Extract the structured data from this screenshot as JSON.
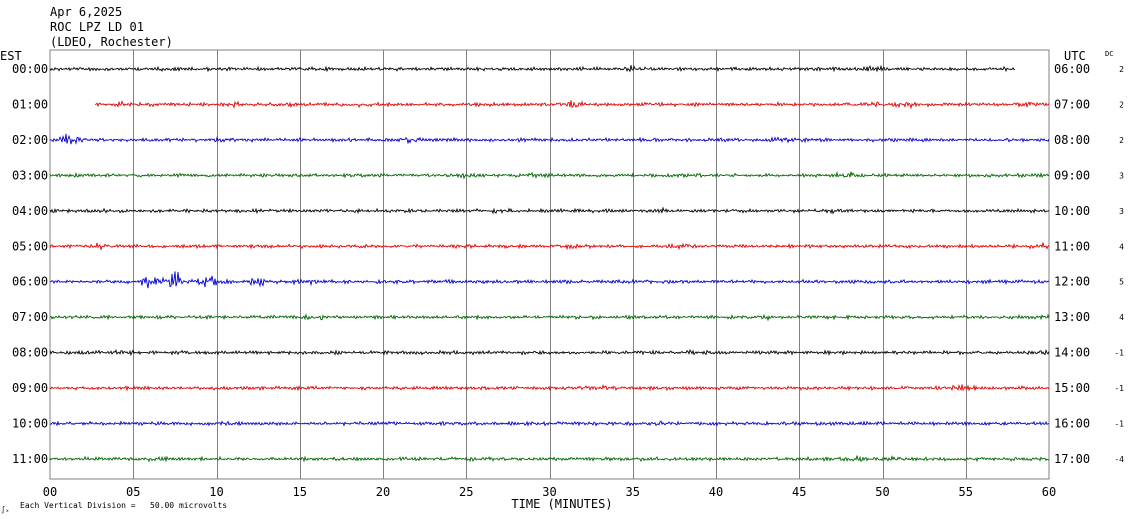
{
  "header": {
    "date": "Apr 6,2025",
    "station": "ROC LPZ LD 01",
    "network": "(LDEO, Rochester)"
  },
  "left_axis_label": "EST",
  "right_axis_label": "UTC",
  "dc_label": "DC",
  "footer": {
    "corner_mark": "∫ₓ",
    "scale_note": "Each Vertical Division =   50.00 microvolts"
  },
  "colors": {
    "black": "#000000",
    "red": "#e00000",
    "blue": "#0000cc",
    "green": "#006400",
    "grid": "#808080"
  },
  "chart_data": {
    "type": "line",
    "title": "Apr 6,2025 ROC LPZ LD 01 (LDEO, Rochester)",
    "xlabel": "TIME (MINUTES)",
    "xlim": [
      0,
      60
    ],
    "xticks": [
      "00",
      "05",
      "10",
      "15",
      "20",
      "25",
      "30",
      "35",
      "40",
      "45",
      "50",
      "55",
      "60"
    ],
    "grid": true,
    "rows": [
      {
        "est": "00:00",
        "utc": "06:00",
        "dc": "2",
        "color": "black",
        "trace_start_min": 0,
        "trace_end_min": 58,
        "events": [
          {
            "min": 35,
            "amp": 1.5
          },
          {
            "min": 49.5,
            "amp": 1.5
          },
          {
            "min": 57,
            "amp": 1.3
          }
        ]
      },
      {
        "est": "01:00",
        "utc": "07:00",
        "dc": "2",
        "color": "red",
        "trace_start_min": 2.7,
        "trace_end_min": 60,
        "events": [
          {
            "min": 4.5,
            "amp": 1.4
          },
          {
            "min": 11,
            "amp": 1.4
          },
          {
            "min": 14,
            "amp": 1.3
          },
          {
            "min": 19,
            "amp": 1.5
          },
          {
            "min": 31.5,
            "amp": 2.2
          },
          {
            "min": 49.5,
            "amp": 1.5
          },
          {
            "min": 51.5,
            "amp": 1.7
          },
          {
            "min": 58.5,
            "amp": 1.5
          }
        ]
      },
      {
        "est": "02:00",
        "utc": "08:00",
        "dc": "2",
        "color": "blue",
        "trace_start_min": 0,
        "trace_end_min": 60,
        "events": [
          {
            "min": 1.2,
            "amp": 2.4
          },
          {
            "min": 10.5,
            "amp": 1.4
          },
          {
            "min": 21.5,
            "amp": 2.0
          },
          {
            "min": 44,
            "amp": 1.3
          }
        ]
      },
      {
        "est": "03:00",
        "utc": "09:00",
        "dc": "3",
        "color": "green",
        "trace_start_min": 0,
        "trace_end_min": 60,
        "events": [
          {
            "min": 25,
            "amp": 1.4
          },
          {
            "min": 29,
            "amp": 1.5
          },
          {
            "min": 48,
            "amp": 2.0
          }
        ]
      },
      {
        "est": "04:00",
        "utc": "10:00",
        "dc": "3",
        "color": "black",
        "trace_start_min": 0,
        "trace_end_min": 60,
        "events": [
          {
            "min": 27,
            "amp": 1.5
          },
          {
            "min": 36.5,
            "amp": 1.4
          },
          {
            "min": 47,
            "amp": 1.3
          }
        ]
      },
      {
        "est": "05:00",
        "utc": "11:00",
        "dc": "4",
        "color": "red",
        "trace_start_min": 0,
        "trace_end_min": 60,
        "events": [
          {
            "min": 3,
            "amp": 1.5
          },
          {
            "min": 19,
            "amp": 1.3
          },
          {
            "min": 31.5,
            "amp": 1.5
          },
          {
            "min": 38,
            "amp": 1.6
          },
          {
            "min": 59.5,
            "amp": 1.6
          }
        ]
      },
      {
        "est": "06:00",
        "utc": "12:00",
        "dc": "5",
        "color": "blue",
        "trace_start_min": 0,
        "trace_end_min": 60,
        "events": [
          {
            "min": 6,
            "amp": 2.5
          },
          {
            "min": 7.5,
            "amp": 3.6
          },
          {
            "min": 9.5,
            "amp": 2.8
          },
          {
            "min": 12.5,
            "amp": 2.2
          },
          {
            "min": 15.5,
            "amp": 2.0
          }
        ]
      },
      {
        "est": "07:00",
        "utc": "13:00",
        "dc": "4",
        "color": "green",
        "trace_start_min": 0,
        "trace_end_min": 60,
        "events": [
          {
            "min": 16,
            "amp": 1.6
          },
          {
            "min": 43,
            "amp": 1.4
          },
          {
            "min": 59.5,
            "amp": 1.3
          }
        ]
      },
      {
        "est": "08:00",
        "utc": "14:00",
        "dc": "-1",
        "color": "black",
        "trace_start_min": 0,
        "trace_end_min": 60,
        "events": [
          {
            "min": 4.5,
            "amp": 1.4
          },
          {
            "min": 7.5,
            "amp": 1.3
          },
          {
            "min": 38.5,
            "amp": 1.4
          },
          {
            "min": 59.8,
            "amp": 1.7
          }
        ]
      },
      {
        "est": "09:00",
        "utc": "15:00",
        "dc": "-1",
        "color": "red",
        "trace_start_min": 0,
        "trace_end_min": 60,
        "events": [
          {
            "min": 33,
            "amp": 1.4
          },
          {
            "min": 54.8,
            "amp": 2.0
          }
        ]
      },
      {
        "est": "10:00",
        "utc": "16:00",
        "dc": "-1",
        "color": "blue",
        "trace_start_min": 0,
        "trace_end_min": 60,
        "events": [
          {
            "min": 10.5,
            "amp": 1.3
          },
          {
            "min": 36.5,
            "amp": 1.4
          }
        ]
      },
      {
        "est": "11:00",
        "utc": "17:00",
        "dc": "-4",
        "color": "green",
        "trace_start_min": 0,
        "trace_end_min": 60,
        "events": [
          {
            "min": 6.5,
            "amp": 1.3
          },
          {
            "min": 48.5,
            "amp": 1.5
          },
          {
            "min": 50.5,
            "amp": 1.3
          }
        ]
      }
    ]
  }
}
